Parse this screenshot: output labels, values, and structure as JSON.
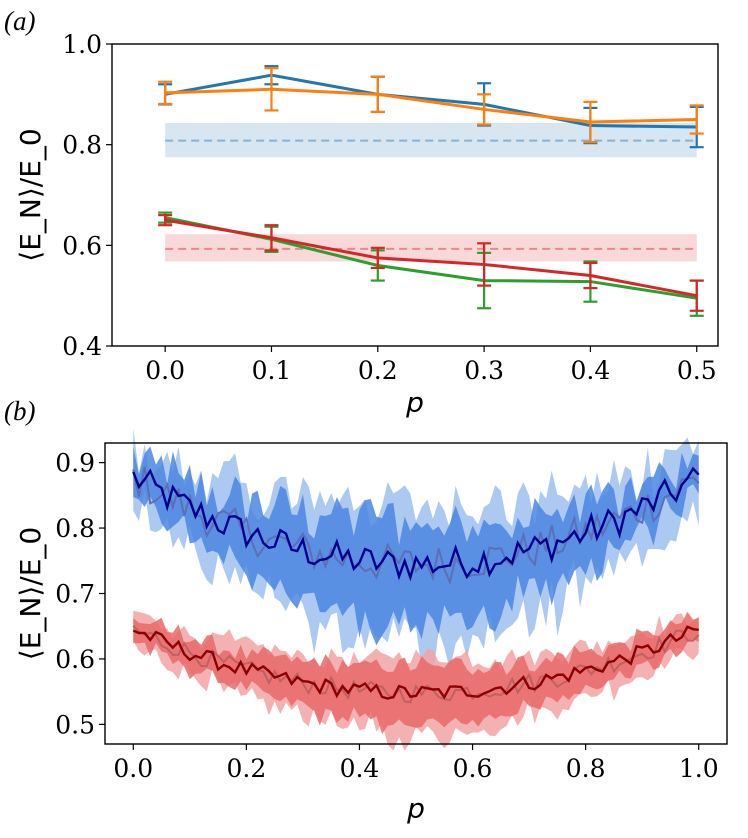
{
  "figure": {
    "panels": [
      "(a)",
      "(b)"
    ]
  },
  "chart_data": [
    {
      "panel": "(a)",
      "type": "line",
      "xlabel": "p",
      "ylabel": "⟨E_N⟩/E_0",
      "xlim": [
        -0.05,
        0.52
      ],
      "ylim": [
        0.4,
        1.0
      ],
      "xticks": [
        "0.0",
        "0.1",
        "0.2",
        "0.3",
        "0.4",
        "0.5"
      ],
      "yticks": [
        "0.4",
        "0.6",
        "0.8",
        "1.0"
      ],
      "x": [
        0.0,
        0.1,
        0.2,
        0.3,
        0.4,
        0.5
      ],
      "series": [
        {
          "name": "blue",
          "color": "#1f77b4",
          "values": [
            0.9,
            0.938,
            0.9,
            0.88,
            0.838,
            0.835
          ],
          "err": [
            0.02,
            0.018,
            0.035,
            0.042,
            0.035,
            0.04
          ]
        },
        {
          "name": "orange",
          "color": "#ff7f0e",
          "values": [
            0.903,
            0.91,
            0.9,
            0.87,
            0.845,
            0.85
          ],
          "err": [
            0.022,
            0.042,
            0.035,
            0.03,
            0.04,
            0.028
          ]
        },
        {
          "name": "green",
          "color": "#2ca02c",
          "values": [
            0.655,
            0.612,
            0.56,
            0.53,
            0.528,
            0.495
          ],
          "err": [
            0.01,
            0.025,
            0.03,
            0.055,
            0.04,
            0.035
          ]
        },
        {
          "name": "red",
          "color": "#d62728",
          "values": [
            0.65,
            0.615,
            0.575,
            0.562,
            0.54,
            0.5
          ],
          "err": [
            0.01,
            0.025,
            0.02,
            0.042,
            0.025,
            0.03
          ]
        }
      ],
      "reference_bands": [
        {
          "name": "blue-reference",
          "color": "#1f77b4",
          "value": 0.808,
          "range": [
            0.775,
            0.843
          ]
        },
        {
          "name": "red-reference",
          "color": "#d62728",
          "value": 0.593,
          "range": [
            0.568,
            0.622
          ]
        }
      ]
    },
    {
      "panel": "(b)",
      "type": "line",
      "xlabel": "p",
      "ylabel": "⟨E_N⟩/E_0",
      "xlim": [
        -0.05,
        1.05
      ],
      "ylim": [
        0.47,
        0.93
      ],
      "xticks": [
        "0.0",
        "0.2",
        "0.4",
        "0.6",
        "0.8",
        "1.0"
      ],
      "yticks": [
        "0.5",
        "0.6",
        "0.7",
        "0.8",
        "0.9"
      ],
      "x_range": [
        0.0,
        1.0
      ],
      "n_points": 101,
      "series": [
        {
          "name": "blue-mean",
          "color": "#00008b",
          "fill": "#4a86e0",
          "mean_end": 0.878,
          "mean_mid": 0.745,
          "band_halfwidth": 0.05
        },
        {
          "name": "blue-alt",
          "color": "#5a6fb8",
          "fill": "#9ec0ef",
          "mean_end": 0.878,
          "mean_mid": 0.745,
          "band_halfwidth": 0.07
        },
        {
          "name": "red-mean",
          "color": "#8b0000",
          "fill": "#e86a6a",
          "mean_end": 0.645,
          "mean_mid": 0.548,
          "band_halfwidth": 0.03
        },
        {
          "name": "red-alt",
          "color": "#c06060",
          "fill": "#f2a3a3",
          "mean_end": 0.645,
          "mean_mid": 0.548,
          "band_halfwidth": 0.04
        }
      ]
    }
  ]
}
